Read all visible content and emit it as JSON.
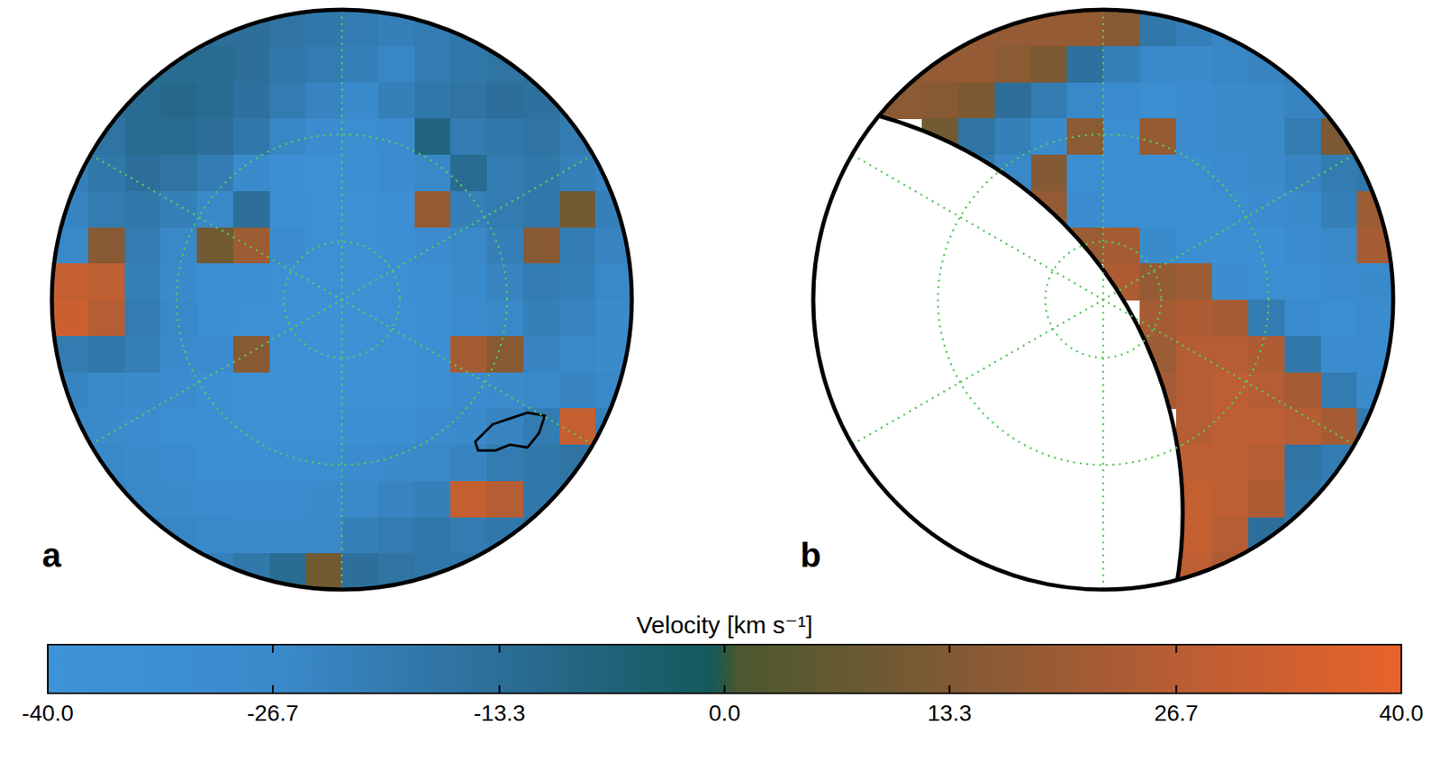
{
  "chart_data": {
    "type": "heatmap",
    "panels": [
      {
        "title": "a",
        "cells": [
          [
            -15,
            -15,
            -15,
            -15,
            -14,
            -14,
            -16,
            -18,
            -20,
            -22,
            -20,
            -18,
            -16,
            -15,
            -15,
            -15
          ],
          [
            -14,
            -14,
            -12,
            -12,
            -12,
            -14,
            -18,
            -20,
            -22,
            -25,
            -20,
            -18,
            -16,
            -15,
            -15,
            -15
          ],
          [
            -15,
            -14,
            -12,
            -10,
            -12,
            -15,
            -20,
            -24,
            -28,
            -22,
            -18,
            -16,
            -14,
            -15,
            -18,
            -20
          ],
          [
            -20,
            -16,
            -12,
            -12,
            -14,
            -18,
            -25,
            -30,
            -32,
            -30,
            -8,
            -20,
            -18,
            -16,
            -20,
            -22
          ],
          [
            -22,
            -18,
            -14,
            -16,
            -20,
            -28,
            -34,
            -36,
            -34,
            -30,
            -26,
            -12,
            -20,
            -18,
            -22,
            -24
          ],
          [
            -24,
            -20,
            -18,
            -22,
            -26,
            -14,
            -32,
            -36,
            -36,
            -34,
            18,
            -22,
            -20,
            -18,
            10,
            -22
          ],
          [
            -26,
            15,
            -20,
            -26,
            10,
            20,
            -30,
            -36,
            -36,
            -34,
            -30,
            -26,
            -22,
            15,
            -20,
            -24
          ],
          [
            30,
            28,
            -22,
            -28,
            -32,
            -34,
            -36,
            -36,
            -38,
            -36,
            -32,
            -28,
            -24,
            -20,
            -22,
            -26
          ],
          [
            32,
            26,
            -20,
            -26,
            -32,
            -36,
            -36,
            -38,
            -38,
            -36,
            -34,
            -30,
            -26,
            -22,
            -24,
            -28
          ],
          [
            -20,
            -18,
            -22,
            -28,
            -30,
            15,
            -36,
            -38,
            -38,
            -36,
            -34,
            22,
            15,
            -24,
            -26,
            -28
          ],
          [
            -24,
            -26,
            -28,
            -30,
            -34,
            -36,
            -38,
            -38,
            -38,
            -36,
            -34,
            -30,
            -28,
            -26,
            -24,
            -26
          ],
          [
            -26,
            -28,
            -30,
            -32,
            -34,
            -36,
            -36,
            -36,
            -34,
            -32,
            -30,
            -28,
            -24,
            -20,
            30,
            -22
          ],
          [
            -24,
            -26,
            -28,
            -30,
            -32,
            -34,
            -34,
            -32,
            -30,
            -28,
            -26,
            -24,
            -20,
            -18,
            -16,
            -20
          ],
          [
            -22,
            -24,
            -26,
            -28,
            -30,
            -30,
            -30,
            -28,
            -26,
            -24,
            -22,
            30,
            26,
            -18,
            -16,
            -18
          ],
          [
            -20,
            -22,
            -24,
            -25,
            -26,
            -27,
            -28,
            -26,
            -22,
            -20,
            -18,
            -20,
            -18,
            -16,
            -16,
            -18
          ],
          [
            -20,
            -20,
            -22,
            -24,
            -22,
            -18,
            -12,
            10,
            -14,
            -16,
            -18,
            -18,
            -18,
            -18,
            -18,
            -18
          ]
        ]
      },
      {
        "title": "b",
        "cells": [
          [
            15,
            15,
            15,
            15,
            18,
            18,
            18,
            18,
            15,
            -18,
            -22,
            -25,
            -22,
            -20,
            -18,
            -18
          ],
          [
            15,
            15,
            16,
            18,
            18,
            16,
            12,
            -15,
            -22,
            -26,
            -28,
            -25,
            -24,
            -22,
            -20,
            -20
          ],
          [
            12,
            14,
            16,
            15,
            12,
            -14,
            -20,
            -26,
            -30,
            -32,
            -30,
            -28,
            -26,
            -24,
            -22,
            -20
          ],
          [
            null,
            null,
            null,
            10,
            -16,
            -22,
            -28,
            16,
            -32,
            18,
            -30,
            -28,
            -26,
            -20,
            12,
            -18
          ],
          [
            null,
            null,
            null,
            null,
            -20,
            -26,
            14,
            -32,
            -34,
            -34,
            -32,
            -30,
            -28,
            -24,
            -20,
            -18
          ],
          [
            null,
            null,
            null,
            null,
            null,
            14,
            18,
            -30,
            -34,
            -34,
            -34,
            -32,
            -30,
            -28,
            -22,
            20
          ],
          [
            null,
            null,
            null,
            null,
            null,
            null,
            null,
            20,
            22,
            -28,
            -32,
            -34,
            -34,
            -30,
            -26,
            22
          ],
          [
            null,
            null,
            null,
            null,
            null,
            null,
            null,
            null,
            24,
            18,
            20,
            -30,
            -32,
            -32,
            -30,
            -28
          ],
          [
            null,
            null,
            null,
            null,
            null,
            null,
            null,
            null,
            null,
            22,
            24,
            22,
            -20,
            -30,
            -32,
            -30
          ],
          [
            null,
            null,
            null,
            null,
            null,
            null,
            null,
            null,
            null,
            20,
            26,
            26,
            24,
            -18,
            -30,
            -30
          ],
          [
            null,
            null,
            null,
            null,
            null,
            null,
            null,
            null,
            null,
            22,
            26,
            28,
            26,
            22,
            -20,
            -28
          ],
          [
            null,
            null,
            null,
            null,
            null,
            null,
            null,
            null,
            null,
            null,
            26,
            28,
            28,
            26,
            22,
            -20
          ],
          [
            null,
            null,
            null,
            null,
            null,
            null,
            null,
            null,
            null,
            null,
            28,
            28,
            26,
            -16,
            -20,
            -22
          ],
          [
            null,
            null,
            null,
            null,
            null,
            null,
            null,
            null,
            null,
            null,
            30,
            28,
            24,
            -18,
            -22,
            -22
          ],
          [
            null,
            null,
            null,
            null,
            null,
            null,
            null,
            null,
            null,
            null,
            30,
            26,
            -14,
            -20,
            -22,
            -22
          ],
          [
            null,
            null,
            null,
            null,
            null,
            null,
            null,
            null,
            null,
            null,
            28,
            24,
            -16,
            -20,
            -22,
            -22
          ]
        ]
      }
    ],
    "colorbar": {
      "title": "Velocity [km s⁻¹]",
      "range": [
        -40,
        40
      ],
      "ticks": [
        {
          "value": -40,
          "label": "-40.0"
        },
        -26.7,
        -13.3,
        {
          "value": 0,
          "label": "0.0"
        },
        13.3,
        26.7,
        {
          "value": 40,
          "label": "40.0"
        }
      ]
    }
  }
}
